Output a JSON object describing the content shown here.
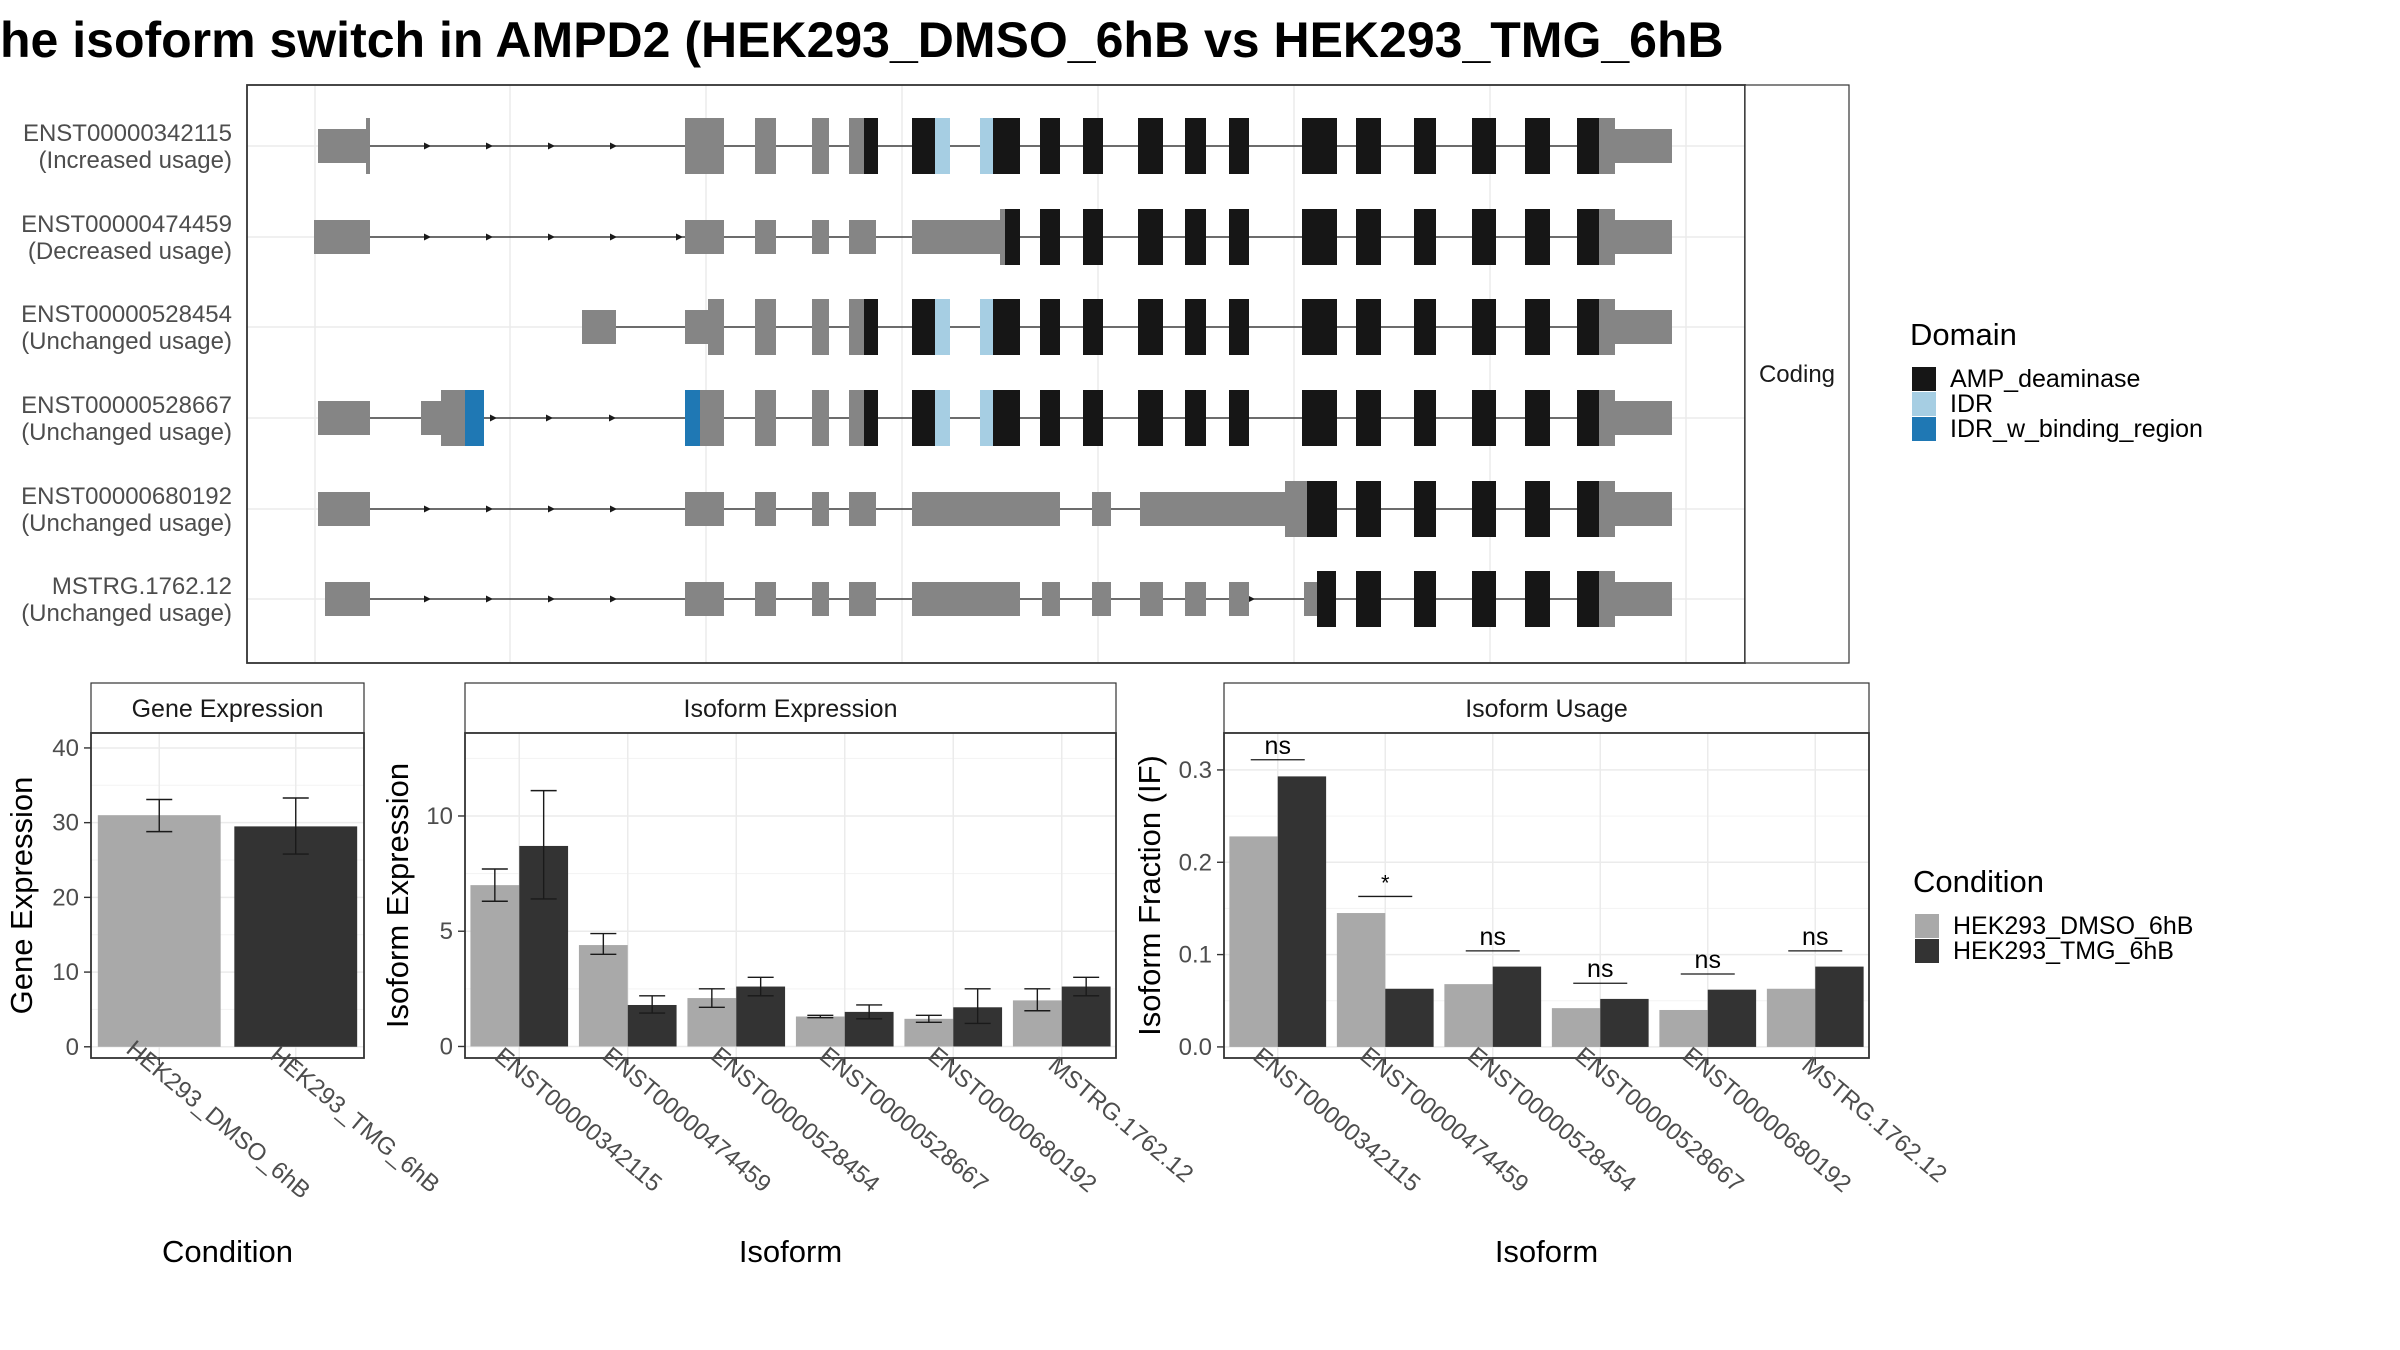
{
  "title": "he isoform switch in AMPD2 (HEK293_DMSO_6hB vs HEK293_TMG_6hB",
  "colors": {
    "dmso": "#a9a9a9",
    "tmg": "#333333",
    "amp_deaminase": "#161616",
    "idr": "#a6cee3",
    "idr_w_binding_region": "#1f78b4",
    "noncoding": "#858585",
    "grid": "#ebebeb",
    "strip_bg": "#ffffff",
    "line": "#1a1a1a"
  },
  "structure": {
    "facet_label": "Coding",
    "isoforms": [
      {
        "id": "ENST00000342115",
        "usage": "(Increased usage)"
      },
      {
        "id": "ENST00000474459",
        "usage": "(Decreased usage)"
      },
      {
        "id": "ENST00000528454",
        "usage": "(Unchanged usage)"
      },
      {
        "id": "ENST00000528667",
        "usage": "(Unchanged usage)"
      },
      {
        "id": "ENST00000680192",
        "usage": "(Unchanged usage)"
      },
      {
        "id": "MSTRG.1762.12",
        "usage": "(Unchanged usage)"
      }
    ]
  },
  "legend_domain": {
    "title": "Domain",
    "items": [
      {
        "label": "AMP_deaminase",
        "color": "#161616"
      },
      {
        "label": "IDR",
        "color": "#a6cee3"
      },
      {
        "label": "IDR_w_binding_region",
        "color": "#1f78b4"
      }
    ]
  },
  "legend_condition": {
    "title": "Condition",
    "items": [
      {
        "label": "HEK293_DMSO_6hB",
        "color": "#a9a9a9"
      },
      {
        "label": "HEK293_TMG_6hB",
        "color": "#333333"
      }
    ]
  },
  "chart_data": [
    {
      "type": "bar",
      "strip": "Gene Expression",
      "xlabel": "Condition",
      "ylabel": "Gene Expression",
      "ylim": [
        -1.5,
        42
      ],
      "yticks": [
        0,
        10,
        20,
        30,
        40
      ],
      "categories": [
        "HEK293_DMSO_6hB",
        "HEK293_TMG_6hB"
      ],
      "values": [
        31.0,
        29.5
      ],
      "err_low": [
        28.8,
        25.8
      ],
      "err_high": [
        33.1,
        33.3
      ]
    },
    {
      "type": "bar",
      "strip": "Isoform Expression",
      "xlabel": "Isoform",
      "ylabel": "Isoform Expression",
      "ylim": [
        -0.5,
        13.6
      ],
      "yticks": [
        0,
        5,
        10
      ],
      "categories": [
        "ENST00000342115",
        "ENST00000474459",
        "ENST00000528454",
        "ENST00000528667",
        "ENST00000680192",
        "MSTRG.1762.12"
      ],
      "series": [
        {
          "name": "HEK293_DMSO_6hB",
          "values": [
            7.0,
            4.4,
            2.1,
            1.3,
            1.2,
            2.0
          ],
          "err_low": [
            6.3,
            4.0,
            1.7,
            1.25,
            1.05,
            1.55
          ],
          "err_high": [
            7.7,
            4.9,
            2.5,
            1.35,
            1.35,
            2.5
          ]
        },
        {
          "name": "HEK293_TMG_6hB",
          "values": [
            8.7,
            1.8,
            2.6,
            1.5,
            1.7,
            2.6
          ],
          "err_low": [
            6.4,
            1.45,
            2.2,
            1.2,
            1.0,
            2.2
          ],
          "err_high": [
            11.1,
            2.2,
            3.0,
            1.8,
            2.5,
            3.0
          ]
        }
      ]
    },
    {
      "type": "bar",
      "strip": "Isoform Usage",
      "xlabel": "Isoform",
      "ylabel": "Isoform Fraction (IF)",
      "ylim": [
        -0.012,
        0.34
      ],
      "yticks": [
        0.0,
        0.1,
        0.2,
        0.3
      ],
      "ytick_labels": [
        "0.0",
        "0.1",
        "0.2",
        "0.3"
      ],
      "categories": [
        "ENST00000342115",
        "ENST00000474459",
        "ENST00000528454",
        "ENST00000528667",
        "ENST00000680192",
        "MSTRG.1762.12"
      ],
      "series": [
        {
          "name": "HEK293_DMSO_6hB",
          "values": [
            0.228,
            0.145,
            0.068,
            0.042,
            0.04,
            0.063
          ]
        },
        {
          "name": "HEK293_TMG_6hB",
          "values": [
            0.293,
            0.063,
            0.087,
            0.052,
            0.062,
            0.087
          ]
        }
      ],
      "significance": [
        "ns",
        "*",
        "ns",
        "ns",
        "ns",
        "ns"
      ],
      "sig_y": [
        0.311,
        0.163,
        0.104,
        0.069,
        0.079,
        0.104
      ]
    }
  ]
}
